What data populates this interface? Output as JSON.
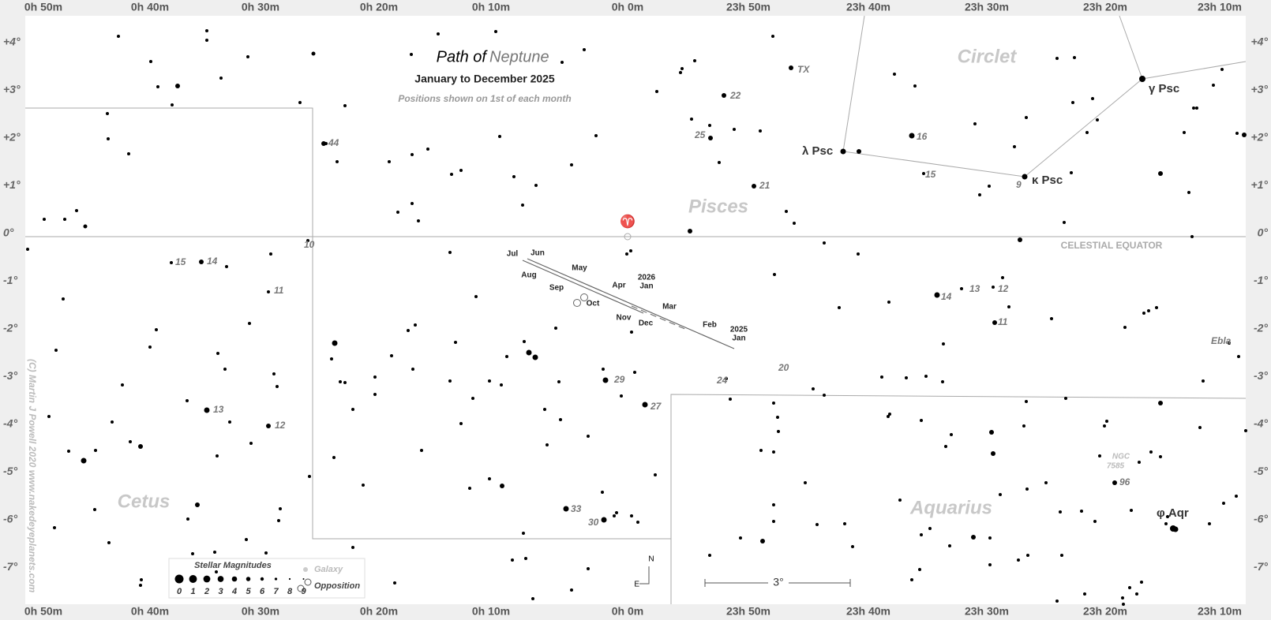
{
  "title": {
    "prefix": "Path of",
    "planet": "Neptune"
  },
  "subtitle": "January to December 2025",
  "note": "Positions shown on 1st of each month",
  "ra_labels": [
    "0h 50m",
    "0h 40m",
    "0h 30m",
    "0h 20m",
    "0h 10m",
    "0h 0m",
    "23h 50m",
    "23h 40m",
    "23h 30m",
    "23h 20m",
    "23h 10m"
  ],
  "dec_labels": [
    "+4°",
    "+3°",
    "+2°",
    "+1°",
    "0°",
    "-1°",
    "-2°",
    "-3°",
    "-4°",
    "-5°",
    "-6°",
    "-7°"
  ],
  "constellations": [
    "Pisces",
    "Cetus",
    "Aquarius",
    "Circlet"
  ],
  "equator": "CELESTIAL EQUATOR",
  "aries_symbol": "♈",
  "star_labels": [
    "44",
    "10",
    "15",
    "14",
    "11",
    "13",
    "12",
    "TX",
    "22",
    "25",
    "21",
    "16",
    "15",
    "9",
    "14",
    "13",
    "12",
    "11",
    "20",
    "24",
    "29",
    "27",
    "33",
    "30",
    "96",
    "Ebla"
  ],
  "greek_labels": [
    "λ Psc",
    "κ Psc",
    "γ Psc",
    "φ Aqr"
  ],
  "ngc": {
    "name": "NGC",
    "number": "7585"
  },
  "month_labels": [
    "Jul",
    "Jun",
    "May",
    "Apr",
    "Mar",
    "Feb",
    "Aug",
    "Sep",
    "Oct",
    "Nov",
    "Dec"
  ],
  "year_labels": [
    {
      "year": "2025",
      "month": "Jan"
    },
    {
      "year": "2026",
      "month": "Jan"
    }
  ],
  "legend": {
    "title": "Stellar Magnitudes",
    "magnitudes": [
      0,
      1,
      2,
      3,
      4,
      5,
      6,
      7,
      8,
      9
    ],
    "galaxy": "Galaxy",
    "opposition": "Opposition"
  },
  "compass": {
    "north": "N",
    "east": "E"
  },
  "scale": "3°",
  "copyright": "(C) Martin J Powell  2020  www.nakedeyeplanets.com"
}
